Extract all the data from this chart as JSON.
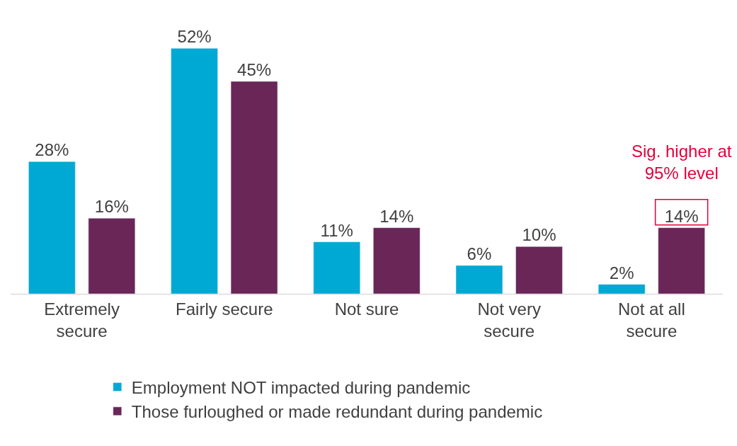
{
  "chart_data": {
    "type": "bar",
    "categories": [
      "Extremely\nsecure",
      "Fairly secure",
      "Not sure",
      "Not very\nsecure",
      "Not at all\nsecure"
    ],
    "series": [
      {
        "name": "Employment NOT impacted during pandemic",
        "color": "#00a9d4",
        "values": [
          28,
          52,
          11,
          6,
          2
        ],
        "value_labels": [
          "28%",
          "52%",
          "11%",
          "6%",
          "2%"
        ]
      },
      {
        "name": "Those furloughed or made redundant during pandemic",
        "color": "#692657",
        "values": [
          16,
          45,
          14,
          10,
          14
        ],
        "value_labels": [
          "16%",
          "45%",
          "14%",
          "10%",
          "14%"
        ]
      }
    ],
    "annotations": [
      "Sig. higher at\n95% level"
    ],
    "legend": "bottom"
  }
}
